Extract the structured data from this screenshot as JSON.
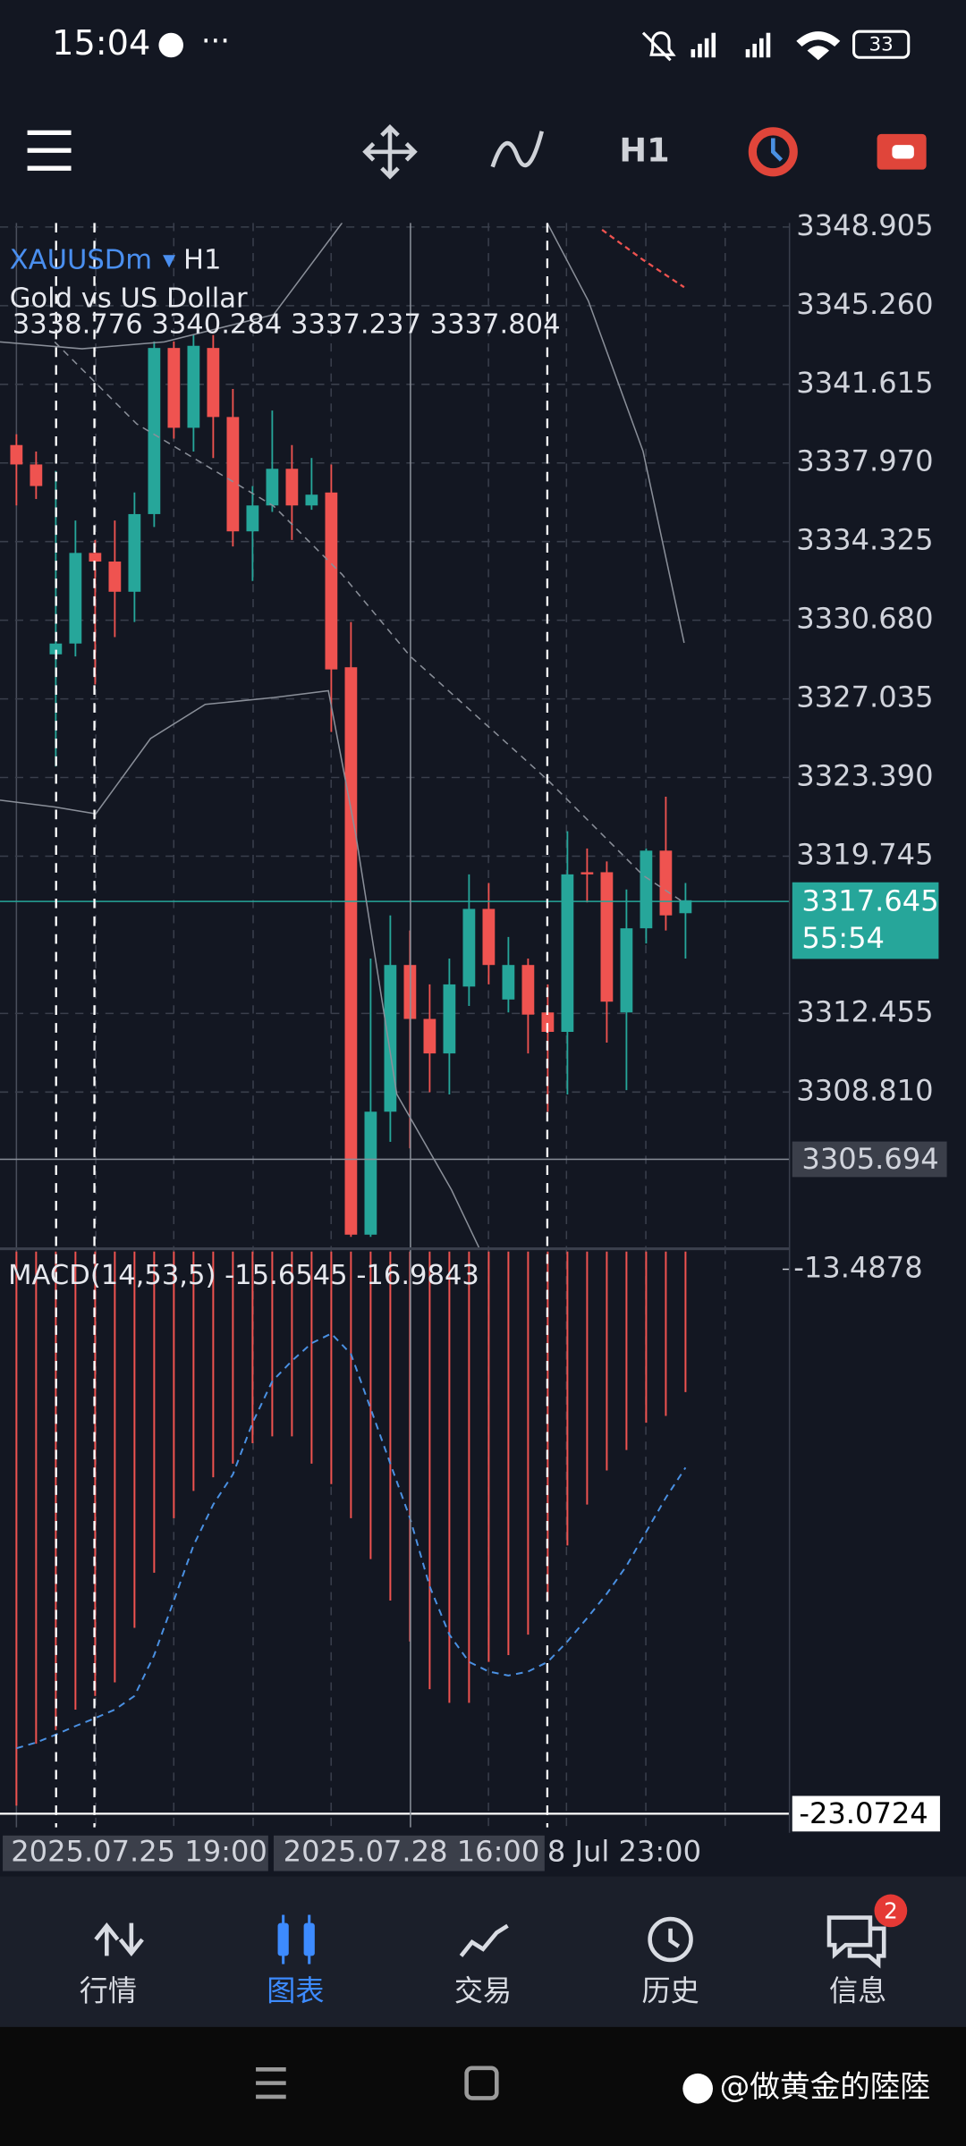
{
  "status_bar": {
    "time": "15:04",
    "battery": "33"
  },
  "toolbar": {
    "timeframe": "H1"
  },
  "chart_data": [
    {
      "type": "candlestick",
      "symbol": "XAUUSDm",
      "timeframe": "H1",
      "description": "Gold vs US Dollar",
      "ohlc_text": "3338.776 3340.284 3337.237 3337.804",
      "up_color": "#26a69a",
      "down_color": "#ef5350",
      "open": [
        3338.8,
        3337.9,
        3329.1,
        3329.6,
        3333.8,
        3333.4,
        3332.0,
        3335.6,
        3343.3,
        3339.6,
        3343.3,
        3340.1,
        3334.8,
        3336.0,
        3337.7,
        3336.0,
        3336.6,
        3328.5,
        3302.2,
        3307.9,
        3314.7,
        3312.2,
        3310.6,
        3313.7,
        3317.3,
        3313.1,
        3314.7,
        3312.5,
        3311.6,
        3319.0,
        3319.0,
        3312.5,
        3316.4,
        3320.0,
        3317.1
      ],
      "high": [
        3339.3,
        3338.5,
        3337.6,
        3335.3,
        3334.4,
        3335.3,
        3336.6,
        3343.6,
        3343.6,
        3343.9,
        3343.9,
        3341.4,
        3336.9,
        3340.4,
        3338.8,
        3338.2,
        3337.9,
        3330.6,
        3315.0,
        3317.0,
        3316.3,
        3313.8,
        3315.0,
        3318.9,
        3318.5,
        3316.0,
        3315.0,
        3313.8,
        3320.9,
        3320.1,
        3319.5,
        3318.2,
        3320.1,
        3322.5,
        3318.5
      ],
      "low": [
        3336.0,
        3336.3,
        3323.9,
        3329.0,
        3327.7,
        3329.9,
        3330.6,
        3335.0,
        3339.1,
        3338.5,
        3338.2,
        3334.1,
        3332.5,
        3335.7,
        3334.4,
        3335.8,
        3325.5,
        3302.1,
        3302.1,
        3306.5,
        3306.2,
        3308.8,
        3308.7,
        3312.8,
        3313.8,
        3312.5,
        3310.6,
        3307.9,
        3308.7,
        3317.6,
        3311.1,
        3308.9,
        3315.7,
        3316.3,
        3315.0
      ],
      "close": [
        3337.9,
        3336.9,
        3329.6,
        3333.8,
        3333.4,
        3332.0,
        3335.6,
        3343.3,
        3339.6,
        3343.4,
        3340.1,
        3334.8,
        3336.0,
        3337.7,
        3336.0,
        3336.5,
        3328.4,
        3302.2,
        3307.9,
        3314.7,
        3312.2,
        3310.6,
        3313.8,
        3317.3,
        3314.7,
        3314.7,
        3312.4,
        3311.6,
        3318.9,
        3318.9,
        3313.0,
        3316.4,
        3320.0,
        3317.0,
        3317.7
      ],
      "ylim": [
        3301.61,
        3349.095
      ],
      "yticks": [
        3348.905,
        {
          "value": 3345.26,
          "label": "3345.260"
        },
        3341.615,
        {
          "value": 3337.97,
          "label": "3337.970"
        },
        3334.325,
        {
          "value": 3330.68,
          "label": "3330.680"
        },
        3327.035,
        {
          "value": 3323.39,
          "label": "3323.390"
        },
        3319.745,
        3312.455,
        {
          "value": 3308.81,
          "label": "3308.810"
        }
      ],
      "last_price": 3317.645,
      "countdown": "55:54",
      "crosshair_price": 3305.694,
      "grid": true
    },
    {
      "type": "macd",
      "title": "MACD(14,53,5)",
      "macd_value": -15.6545,
      "signal_value": -16.9843,
      "histogram_color": "#ef5350",
      "signal_color": "#4a90e2",
      "histogram": [
        -22.93,
        -21.84,
        -21.6,
        -21.24,
        -21.0,
        -20.76,
        -19.8,
        -18.83,
        -17.87,
        -17.39,
        -17.15,
        -16.91,
        -16.55,
        -16.43,
        -16.43,
        -16.91,
        -17.27,
        -17.87,
        -18.59,
        -19.32,
        -20.04,
        -20.88,
        -21.12,
        -21.12,
        -20.4,
        -20.28,
        -19.92,
        -19.32,
        -18.35,
        -17.63,
        -17.03,
        -16.67,
        -16.19,
        -16.07,
        -15.65
      ],
      "signal": [
        -21.92,
        -21.82,
        -21.68,
        -21.53,
        -21.39,
        -21.24,
        -21.0,
        -20.28,
        -19.32,
        -18.35,
        -17.63,
        -17.1,
        -16.19,
        -15.46,
        -15.1,
        -14.79,
        -14.62,
        -14.98,
        -15.94,
        -16.91,
        -17.87,
        -19.07,
        -19.92,
        -20.4,
        -20.57,
        -20.64,
        -20.57,
        -20.4,
        -20.04,
        -19.63,
        -19.2,
        -18.71,
        -18.11,
        -17.51,
        -16.98
      ],
      "ylim": [
        -23.312,
        -13.175
      ],
      "yticks": [
        -13.4878,
        -23.0724
      ]
    }
  ],
  "x_labels": [
    "2025.07.25 19:00",
    "2025.07.28 16:00",
    "8 Jul 23:00"
  ],
  "nav": [
    "行情",
    "图表",
    "交易",
    "历史",
    "信息"
  ],
  "badge": "2",
  "watermark": "@做黄金的陸陸"
}
